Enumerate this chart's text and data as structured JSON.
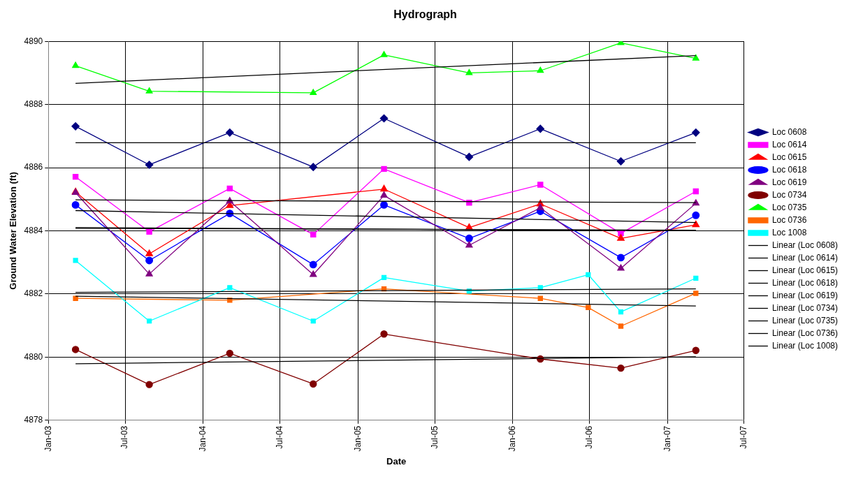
{
  "chart_data": {
    "type": "line",
    "title": "Hydrograph",
    "xlabel": "Date",
    "ylabel": "Ground Water Elevation (ft)",
    "xlim": [
      "2003-01",
      "2007-07"
    ],
    "xticks": [
      {
        "value": "2003-01",
        "label": "Jan-03"
      },
      {
        "value": "2003-07",
        "label": "Jul-03"
      },
      {
        "value": "2004-01",
        "label": "Jan-04"
      },
      {
        "value": "2004-07",
        "label": "Jul-04"
      },
      {
        "value": "2005-01",
        "label": "Jan-05"
      },
      {
        "value": "2005-07",
        "label": "Jul-05"
      },
      {
        "value": "2006-01",
        "label": "Jan-06"
      },
      {
        "value": "2006-07",
        "label": "Jul-06"
      },
      {
        "value": "2007-01",
        "label": "Jan-07"
      },
      {
        "value": "2007-07",
        "label": "Jul-07"
      }
    ],
    "ylim": [
      4878,
      4890
    ],
    "yticks": [
      4878,
      4880,
      4882,
      4884,
      4886,
      4888,
      4890
    ],
    "grid": true,
    "legend": "right",
    "series": [
      {
        "name": "Loc 0608",
        "color": "#000080",
        "marker": "diamond",
        "x": [
          "2003-03-06",
          "2003-08-27",
          "2004-03-04",
          "2004-09-17",
          "2005-03-03",
          "2005-09-20",
          "2006-03-07",
          "2006-09-13",
          "2007-03-09"
        ],
        "values": [
          4887.31,
          4886.09,
          4887.11,
          4886.02,
          4887.56,
          4886.34,
          4887.23,
          4886.2,
          4887.11
        ]
      },
      {
        "name": "Loc 0614",
        "color": "#ff00ff",
        "marker": "square",
        "x": [
          "2003-03-06",
          "2003-08-27",
          "2004-03-04",
          "2004-09-17",
          "2005-03-03",
          "2005-09-20",
          "2006-03-07",
          "2006-09-13",
          "2007-03-09"
        ],
        "values": [
          4885.71,
          4883.97,
          4885.34,
          4883.88,
          4885.96,
          4884.89,
          4885.46,
          4883.92,
          4885.25
        ]
      },
      {
        "name": "Loc 0615",
        "color": "#ff0000",
        "marker": "triangle",
        "x": [
          "2003-03-06",
          "2003-08-27",
          "2004-03-04",
          "2005-03-03",
          "2005-09-20",
          "2006-03-07",
          "2006-09-13",
          "2007-03-09"
        ],
        "values": [
          4885.23,
          4883.27,
          4884.8,
          4885.32,
          4884.1,
          4884.85,
          4883.76,
          4884.19
        ]
      },
      {
        "name": "Loc 0618",
        "color": "#0000ff",
        "marker": "circle",
        "x": [
          "2003-03-06",
          "2003-08-27",
          "2004-03-04",
          "2004-09-17",
          "2005-03-03",
          "2005-09-20",
          "2006-03-07",
          "2006-09-13",
          "2007-03-09"
        ],
        "values": [
          4884.82,
          4883.06,
          4884.55,
          4882.93,
          4884.82,
          4883.76,
          4884.62,
          4883.15,
          4884.49
        ]
      },
      {
        "name": "Loc 0619",
        "color": "#800080",
        "marker": "triangle",
        "x": [
          "2003-03-06",
          "2003-08-27",
          "2004-03-04",
          "2004-09-17",
          "2005-03-03",
          "2005-09-20",
          "2006-03-07",
          "2006-09-13",
          "2007-03-09"
        ],
        "values": [
          4885.21,
          4882.63,
          4884.94,
          4882.61,
          4885.12,
          4883.54,
          4884.73,
          4882.81,
          4884.87
        ]
      },
      {
        "name": "Loc 0734",
        "color": "#800000",
        "marker": "circle",
        "x": [
          "2003-03-06",
          "2003-08-27",
          "2004-03-04",
          "2004-09-17",
          "2005-03-03",
          "2006-03-07",
          "2006-09-13",
          "2007-03-09"
        ],
        "values": [
          4880.24,
          4879.13,
          4880.12,
          4879.15,
          4880.73,
          4879.94,
          4879.65,
          4880.21
        ]
      },
      {
        "name": "Loc 0735",
        "color": "#00ff00",
        "marker": "triangle",
        "x": [
          "2003-03-06",
          "2003-08-27",
          "2004-09-17",
          "2005-03-03",
          "2005-09-20",
          "2006-03-07",
          "2006-09-13",
          "2007-03-09"
        ],
        "values": [
          4889.23,
          4888.42,
          4888.37,
          4889.57,
          4889.0,
          4889.07,
          4889.95,
          4889.46
        ]
      },
      {
        "name": "Loc 0736",
        "color": "#ff6600",
        "marker": "square",
        "x": [
          "2003-03-06",
          "2004-03-04",
          "2005-03-03",
          "2006-03-07",
          "2006-06-28",
          "2006-09-13",
          "2007-03-09"
        ],
        "values": [
          4881.86,
          4881.8,
          4882.16,
          4881.86,
          4881.57,
          4880.98,
          4882.02
        ]
      },
      {
        "name": "Loc 1008",
        "color": "#00ffff",
        "marker": "square",
        "x": [
          "2003-03-06",
          "2003-08-27",
          "2004-03-04",
          "2004-09-17",
          "2005-03-03",
          "2005-09-20",
          "2006-03-07",
          "2006-06-28",
          "2006-09-13",
          "2007-03-09"
        ],
        "values": [
          4883.06,
          4881.14,
          4882.2,
          4881.14,
          4882.52,
          4882.09,
          4882.2,
          4882.61,
          4881.43,
          4882.5
        ]
      },
      {
        "name": "Linear (Loc 0608)",
        "color": "#000000",
        "marker": "none",
        "x": [
          "2003-03-06",
          "2007-03-09"
        ],
        "values": [
          4886.79,
          4886.79
        ]
      },
      {
        "name": "Linear (Loc 0614)",
        "color": "#000000",
        "marker": "none",
        "x": [
          "2003-03-06",
          "2007-03-09"
        ],
        "values": [
          4884.98,
          4884.89
        ]
      },
      {
        "name": "Linear (Loc 0615)",
        "color": "#000000",
        "marker": "none",
        "x": [
          "2003-03-06",
          "2007-03-09"
        ],
        "values": [
          4884.64,
          4884.26
        ]
      },
      {
        "name": "Linear (Loc 0618)",
        "color": "#000000",
        "marker": "none",
        "x": [
          "2003-03-06",
          "2007-03-09"
        ],
        "values": [
          4884.08,
          4884.02
        ]
      },
      {
        "name": "Linear (Loc 0619)",
        "color": "#000000",
        "marker": "none",
        "x": [
          "2003-03-06",
          "2007-03-09"
        ],
        "values": [
          4884.1,
          4884.0
        ]
      },
      {
        "name": "Linear (Loc 0734)",
        "color": "#000000",
        "marker": "none",
        "x": [
          "2003-03-06",
          "2007-03-09"
        ],
        "values": [
          4879.79,
          4880.01
        ]
      },
      {
        "name": "Linear (Loc 0735)",
        "color": "#000000",
        "marker": "none",
        "x": [
          "2003-03-06",
          "2007-03-09"
        ],
        "values": [
          4888.67,
          4889.55
        ]
      },
      {
        "name": "Linear (Loc 0736)",
        "color": "#000000",
        "marker": "none",
        "x": [
          "2003-03-06",
          "2007-03-09"
        ],
        "values": [
          4881.93,
          4881.62
        ]
      },
      {
        "name": "Linear (Loc 1008)",
        "color": "#000000",
        "marker": "none",
        "x": [
          "2003-03-06",
          "2007-03-09"
        ],
        "values": [
          4882.05,
          4882.16
        ]
      }
    ]
  }
}
